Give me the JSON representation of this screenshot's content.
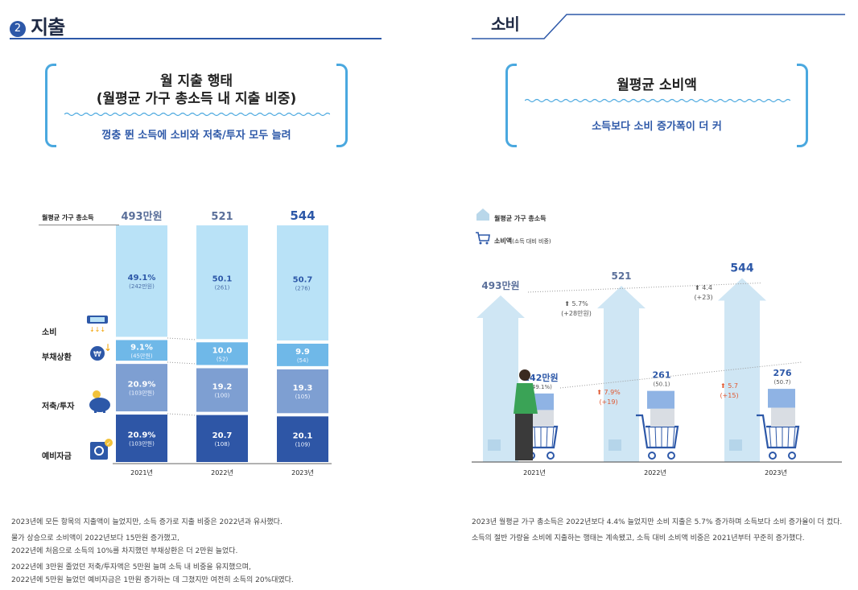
{
  "left": {
    "section_num": "2",
    "section_title": "지출",
    "box_title_1": "월 지출 행태",
    "box_title_2": "(월평균 가구 총소득 내 지출 비중)",
    "box_sub": "껑충 뛴 소득에 소비와 저축/투자 모두 늘려",
    "income_label": "월평균 가구 총소득",
    "row_labels": {
      "c": "소비",
      "d": "부채상환",
      "s": "저축/투자",
      "e": "예비자금"
    },
    "footnotes": [
      "2023년에 모든 항목의 지출액이 늘었지만, 소득 증가로 지출 비중은 2022년과 유사했다.",
      "물가 상승으로 소비액이 2022년보다 15만원 증가했고,",
      "2022년에 처음으로 소득의 10%를 차지했던 부채상환은 더 2만원 늘었다.",
      "2022년에 3만원 줄었던 저축/투자액은 5만원 늘며 소득 내 비중을 유지했으며,",
      "2022년에 5만원 늘었던 예비자금은 1만원 증가하는 데 그쳤지만 여전히 소득의 20%대였다."
    ]
  },
  "right": {
    "section_title": "소비",
    "box_title": "월평균 소비액",
    "box_sub": "소득보다 소비 증가폭이 더 커",
    "legend_income": "월평균 가구 총소득",
    "legend_spend": "소비액",
    "legend_spend_note": "(소득 대비 비중)",
    "footnotes": [
      "2023년 월평균 가구 총소득은 2022년보다 4.4% 늘었지만 소비 지출은 5.7% 증가하며 소득보다 소비 증가율이 더 컸다.",
      "소득의 절반 가량을 소비에 지출하는 행태는 계속됐고, 소득 대비 소비액 비중은 2021년부터 꾸준히 증가했다."
    ]
  },
  "chart_data": [
    {
      "type": "bar",
      "stacked": true,
      "categories": [
        "2021년",
        "2022년",
        "2023년"
      ],
      "totals": [
        "493만원",
        "521",
        "544"
      ],
      "total_values": [
        493,
        521,
        544
      ],
      "series": [
        {
          "name": "소비",
          "pct": [
            49.1,
            50.1,
            50.7
          ],
          "pct_labels": [
            "49.1%",
            "50.1",
            "50.7"
          ],
          "amount_labels": [
            "(242만원)",
            "(261)",
            "(276)"
          ],
          "color": "#b9e2f7"
        },
        {
          "name": "부채상환",
          "pct": [
            9.1,
            10.0,
            9.9
          ],
          "pct_labels": [
            "9.1%",
            "10.0",
            "9.9"
          ],
          "amount_labels": [
            "(45만원)",
            "(52)",
            "(54)"
          ],
          "color": "#6fb8e8"
        },
        {
          "name": "저축/투자",
          "pct": [
            20.9,
            19.2,
            19.3
          ],
          "pct_labels": [
            "20.9%",
            "19.2",
            "19.3"
          ],
          "amount_labels": [
            "(103만원)",
            "(100)",
            "(105)"
          ],
          "color": "#7e9fd2"
        },
        {
          "name": "예비자금",
          "pct": [
            20.9,
            20.7,
            20.1
          ],
          "pct_labels": [
            "20.9%",
            "20.7",
            "20.1"
          ],
          "amount_labels": [
            "(103만원)",
            "(108)",
            "(109)"
          ],
          "color": "#2e56a6"
        }
      ]
    },
    {
      "type": "bar",
      "categories": [
        "2021년",
        "2022년",
        "2023년"
      ],
      "series": [
        {
          "name": "월평균 가구 총소득",
          "values": [
            493,
            521,
            544
          ],
          "labels": [
            "493만원",
            "521",
            "544"
          ]
        },
        {
          "name": "소비액",
          "values": [
            242,
            261,
            276
          ],
          "labels": [
            "242만원",
            "261",
            "276"
          ],
          "share_labels": [
            "(49.1%)",
            "(50.1)",
            "(50.7)"
          ]
        }
      ],
      "income_growth": [
        {
          "pct": "5.7%",
          "abs": "(+28만원)"
        },
        {
          "pct": "4.4",
          "abs": "(+23)"
        }
      ],
      "spend_growth": [
        {
          "pct": "7.9%",
          "abs": "(+19)"
        },
        {
          "pct": "5.7",
          "abs": "(+15)"
        }
      ]
    }
  ]
}
